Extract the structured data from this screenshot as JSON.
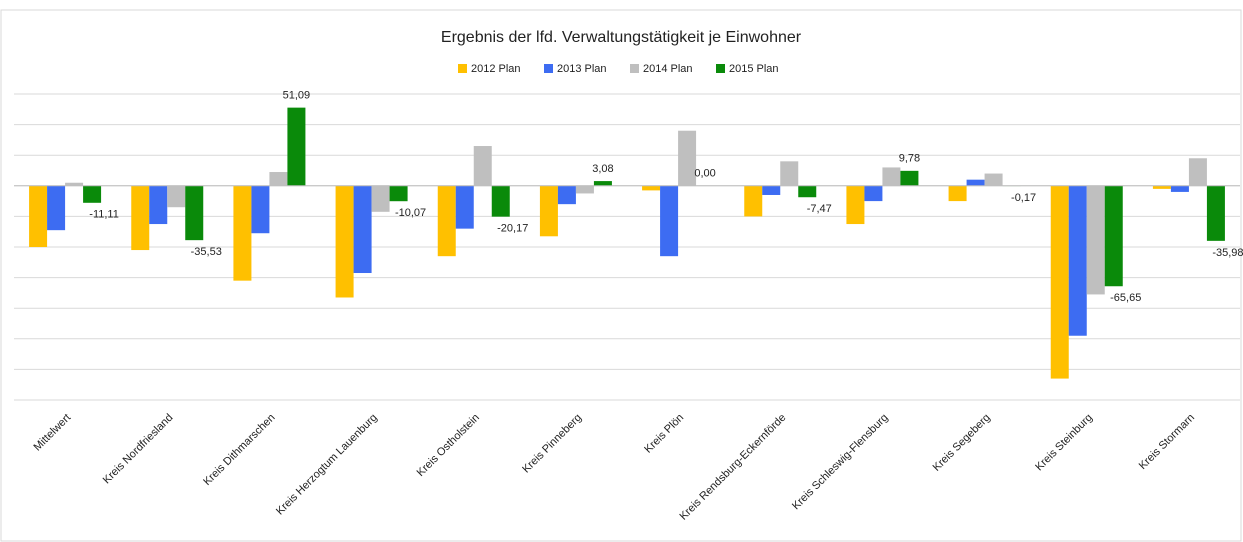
{
  "chart_data": {
    "type": "bar",
    "title": "Ergebnis der lfd. Verwaltungstätigkeit je Einwohner",
    "categories": [
      "Mittelwert",
      "Kreis Nordfriesland",
      "Kreis Dithmarschen",
      "Kreis Herzogtum Lauenburg",
      "Kreis Ostholstein",
      "Kreis Pinneberg",
      "Kreis Plön",
      "Kreis Rendsburg-Eckernförde",
      "Kreis Schleswig-Flensburg",
      "Kreis Segeberg",
      "Kreis Steinburg",
      "Kreis Stormarn"
    ],
    "series": [
      {
        "name": "2012 Plan",
        "color": "#ffc000",
        "values": [
          -40,
          -42,
          -62,
          -73,
          -46,
          -33,
          -3,
          -20,
          -25,
          -10,
          -126,
          -2
        ]
      },
      {
        "name": "2013 Plan",
        "color": "#3d6cf2",
        "values": [
          -29,
          -25,
          -31,
          -57,
          -28,
          -12,
          -46,
          -6,
          -10,
          4,
          -98,
          -4
        ]
      },
      {
        "name": "2014 Plan",
        "color": "#bfbfbf",
        "values": [
          2,
          -14,
          9,
          -17,
          26,
          -5,
          36,
          16,
          12,
          8,
          -71,
          18
        ]
      },
      {
        "name": "2015 Plan",
        "color": "#0a8a0a",
        "values": [
          -11.11,
          -35.53,
          51.09,
          -10.07,
          -20.17,
          3.08,
          0.0,
          -7.47,
          9.78,
          -0.17,
          -65.65,
          -35.98
        ],
        "value_labels": [
          "-11,11",
          "-35,53",
          "51,09",
          "-10,07",
          "-20,17",
          "3,08",
          "0,00",
          "-7,47",
          "9,78",
          "-0,17",
          "-65,65",
          "-35,98"
        ]
      }
    ],
    "ylim": [
      -140,
      60
    ],
    "yticks": [
      -140,
      -120,
      -100,
      -80,
      -60,
      -40,
      -20,
      0,
      20,
      40,
      60
    ],
    "grid": true,
    "legend": "top"
  }
}
